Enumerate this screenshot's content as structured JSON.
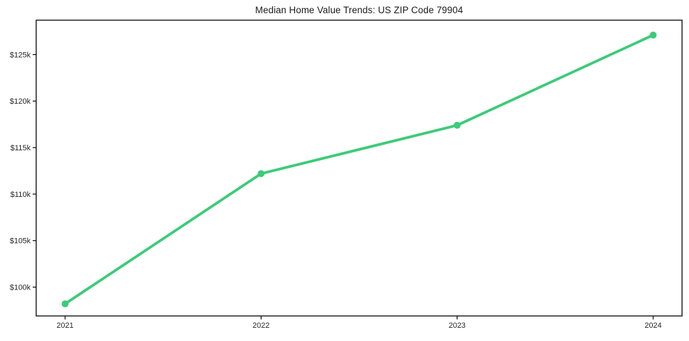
{
  "chart_data": {
    "type": "line",
    "title": "Median Home Value Trends: US ZIP Code 79904",
    "categories": [
      "2021",
      "2022",
      "2023",
      "2024"
    ],
    "values": [
      98200,
      112200,
      117400,
      127100
    ],
    "y_ticks": [
      {
        "value": 100000,
        "label": "$100k"
      },
      {
        "value": 105000,
        "label": "$105k"
      },
      {
        "value": 110000,
        "label": "$110k"
      },
      {
        "value": 115000,
        "label": "$115k"
      },
      {
        "value": 120000,
        "label": "$120k"
      },
      {
        "value": 125000,
        "label": "$125k"
      }
    ],
    "ylim": [
      96900,
      128700
    ],
    "xlabel": "",
    "ylabel": "",
    "grid": false,
    "legend_position": "none",
    "line_color": "#3ccb78",
    "marker": "circle",
    "tick_label_color": "#262626",
    "spine_color": "#000000"
  }
}
